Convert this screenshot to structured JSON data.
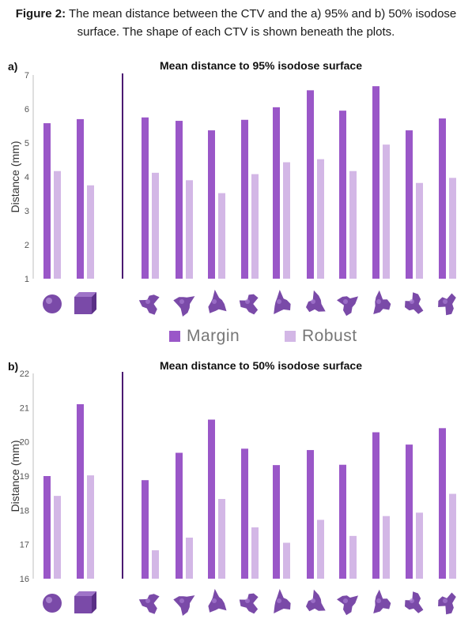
{
  "caption": {
    "label": "Figure 2:",
    "text": " The mean distance between the CTV and the a) 95% and b) 50% isodose surface. The shape of each CTV is shown beneath the plots."
  },
  "colors": {
    "margin": "#9a57c8",
    "robust": "#d3b7e6",
    "divider": "#4b1a72",
    "shape": "#7a4aa8"
  },
  "legend": {
    "margin": "Margin",
    "robust": "Robust"
  },
  "chart_data": [
    {
      "type": "bar",
      "panel": "a)",
      "title": "Mean distance to 95% isodose surface",
      "ylabel": "Distance (mm)",
      "ylim": [
        1,
        7
      ],
      "yticks": [
        "1",
        "2",
        "3",
        "4",
        "5",
        "6",
        "7"
      ],
      "categories": [
        "sphere",
        "cube",
        "ctv1",
        "ctv2",
        "ctv3",
        "ctv4",
        "ctv5",
        "ctv6",
        "ctv7",
        "ctv8",
        "ctv9",
        "ctv10"
      ],
      "series": [
        {
          "name": "Margin",
          "values": [
            5.58,
            5.7,
            5.75,
            5.65,
            5.37,
            5.68,
            6.05,
            6.55,
            5.95,
            6.67,
            5.37,
            5.72
          ]
        },
        {
          "name": "Robust",
          "values": [
            4.17,
            3.75,
            4.12,
            3.9,
            3.52,
            4.08,
            4.43,
            4.52,
            4.17,
            4.95,
            3.82,
            3.97
          ]
        }
      ],
      "grid": false,
      "legend_position": "bottom"
    },
    {
      "type": "bar",
      "panel": "b)",
      "title": "Mean distance to 50% isodose surface",
      "ylabel": "Distance (mm)",
      "ylim": [
        16,
        22
      ],
      "yticks": [
        "16",
        "17",
        "18",
        "19",
        "20",
        "21",
        "22"
      ],
      "categories": [
        "sphere",
        "cube",
        "ctv1",
        "ctv2",
        "ctv3",
        "ctv4",
        "ctv5",
        "ctv6",
        "ctv7",
        "ctv8",
        "ctv9",
        "ctv10"
      ],
      "series": [
        {
          "name": "Margin",
          "values": [
            19.0,
            21.1,
            18.88,
            19.68,
            20.65,
            19.8,
            19.32,
            19.76,
            19.33,
            20.28,
            19.92,
            20.4
          ]
        },
        {
          "name": "Robust",
          "values": [
            18.42,
            19.02,
            16.83,
            17.2,
            18.33,
            17.5,
            17.05,
            17.72,
            17.25,
            17.83,
            17.93,
            18.48
          ]
        }
      ],
      "grid": false,
      "legend_position": "none"
    }
  ]
}
